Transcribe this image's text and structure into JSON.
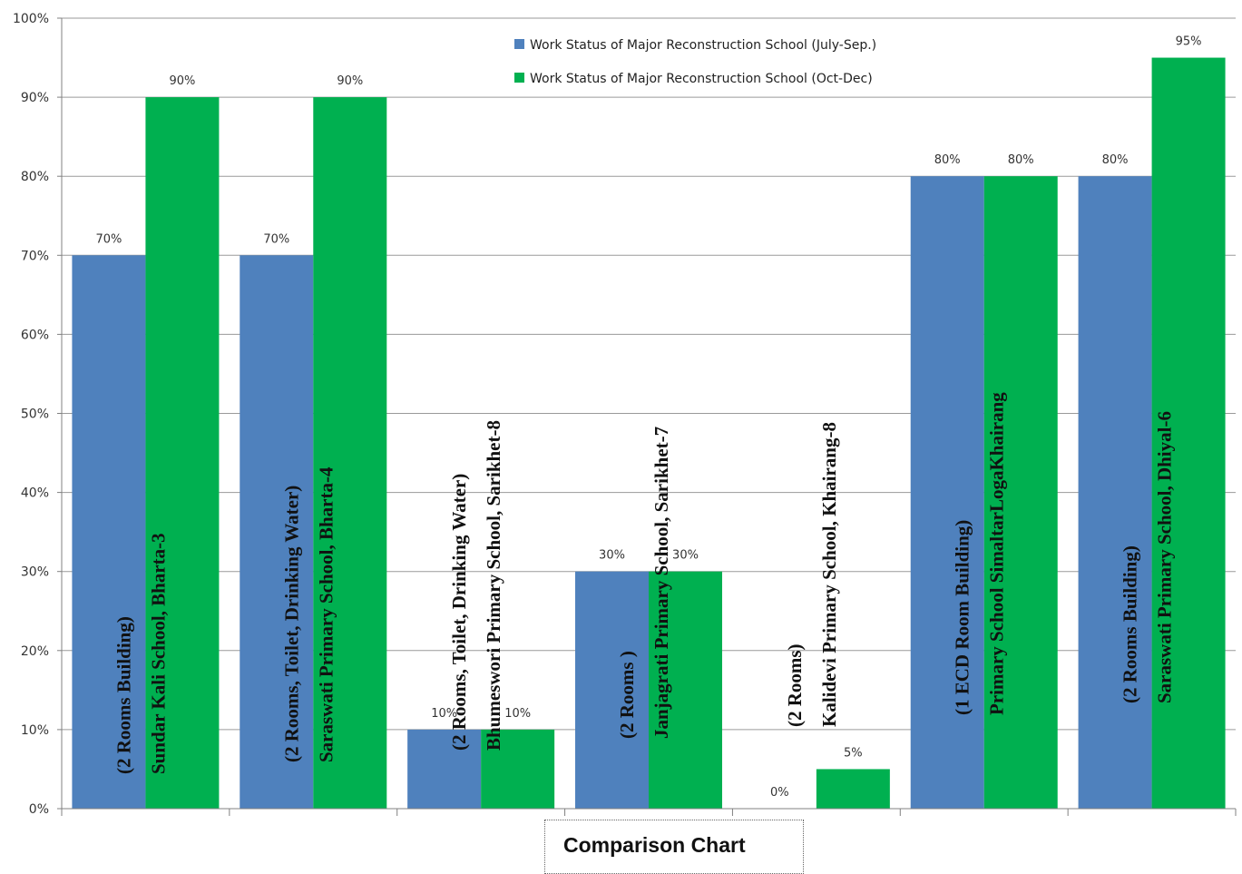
{
  "chart_data": {
    "type": "bar",
    "title": "Comparison Chart",
    "ylim": [
      0,
      100
    ],
    "y_unit": "%",
    "y_ticks": [
      0,
      10,
      20,
      30,
      40,
      50,
      60,
      70,
      80,
      90,
      100
    ],
    "grid": true,
    "legend_position": "top-center",
    "categories": [
      [
        "(2 Rooms Building)",
        "Sundar Kali School, Bharta-3"
      ],
      [
        "(2 Rooms, Toilet, Drinking Water)",
        "Saraswati Primary School, Bharta-4"
      ],
      [
        "(2 Rooms, Toilet, Drinking Water)",
        "Bhumeswori Primary School, Sarikhet-8"
      ],
      [
        "(2 Rooms )",
        "Janjagrati Primary School, Sarikhet-7"
      ],
      [
        "(2 Rooms)",
        "Kalidevi Primary School, Khairang-8"
      ],
      [
        "(1 ECD Room Building)",
        "Primary School SimaltarLogaKhairang"
      ],
      [
        "(2 Rooms Building)",
        "Saraswati Primary School, Dhiyal-6"
      ]
    ],
    "series": [
      {
        "name": "Work Status of Major Reconstruction School (July-Sep.)",
        "color": "#4F81BD",
        "values": [
          70,
          70,
          10,
          30,
          0,
          80,
          80
        ]
      },
      {
        "name": "Work Status of Major Reconstruction School (Oct-Dec)",
        "color": "#00B050",
        "values": [
          90,
          90,
          10,
          30,
          5,
          80,
          95
        ]
      }
    ]
  }
}
